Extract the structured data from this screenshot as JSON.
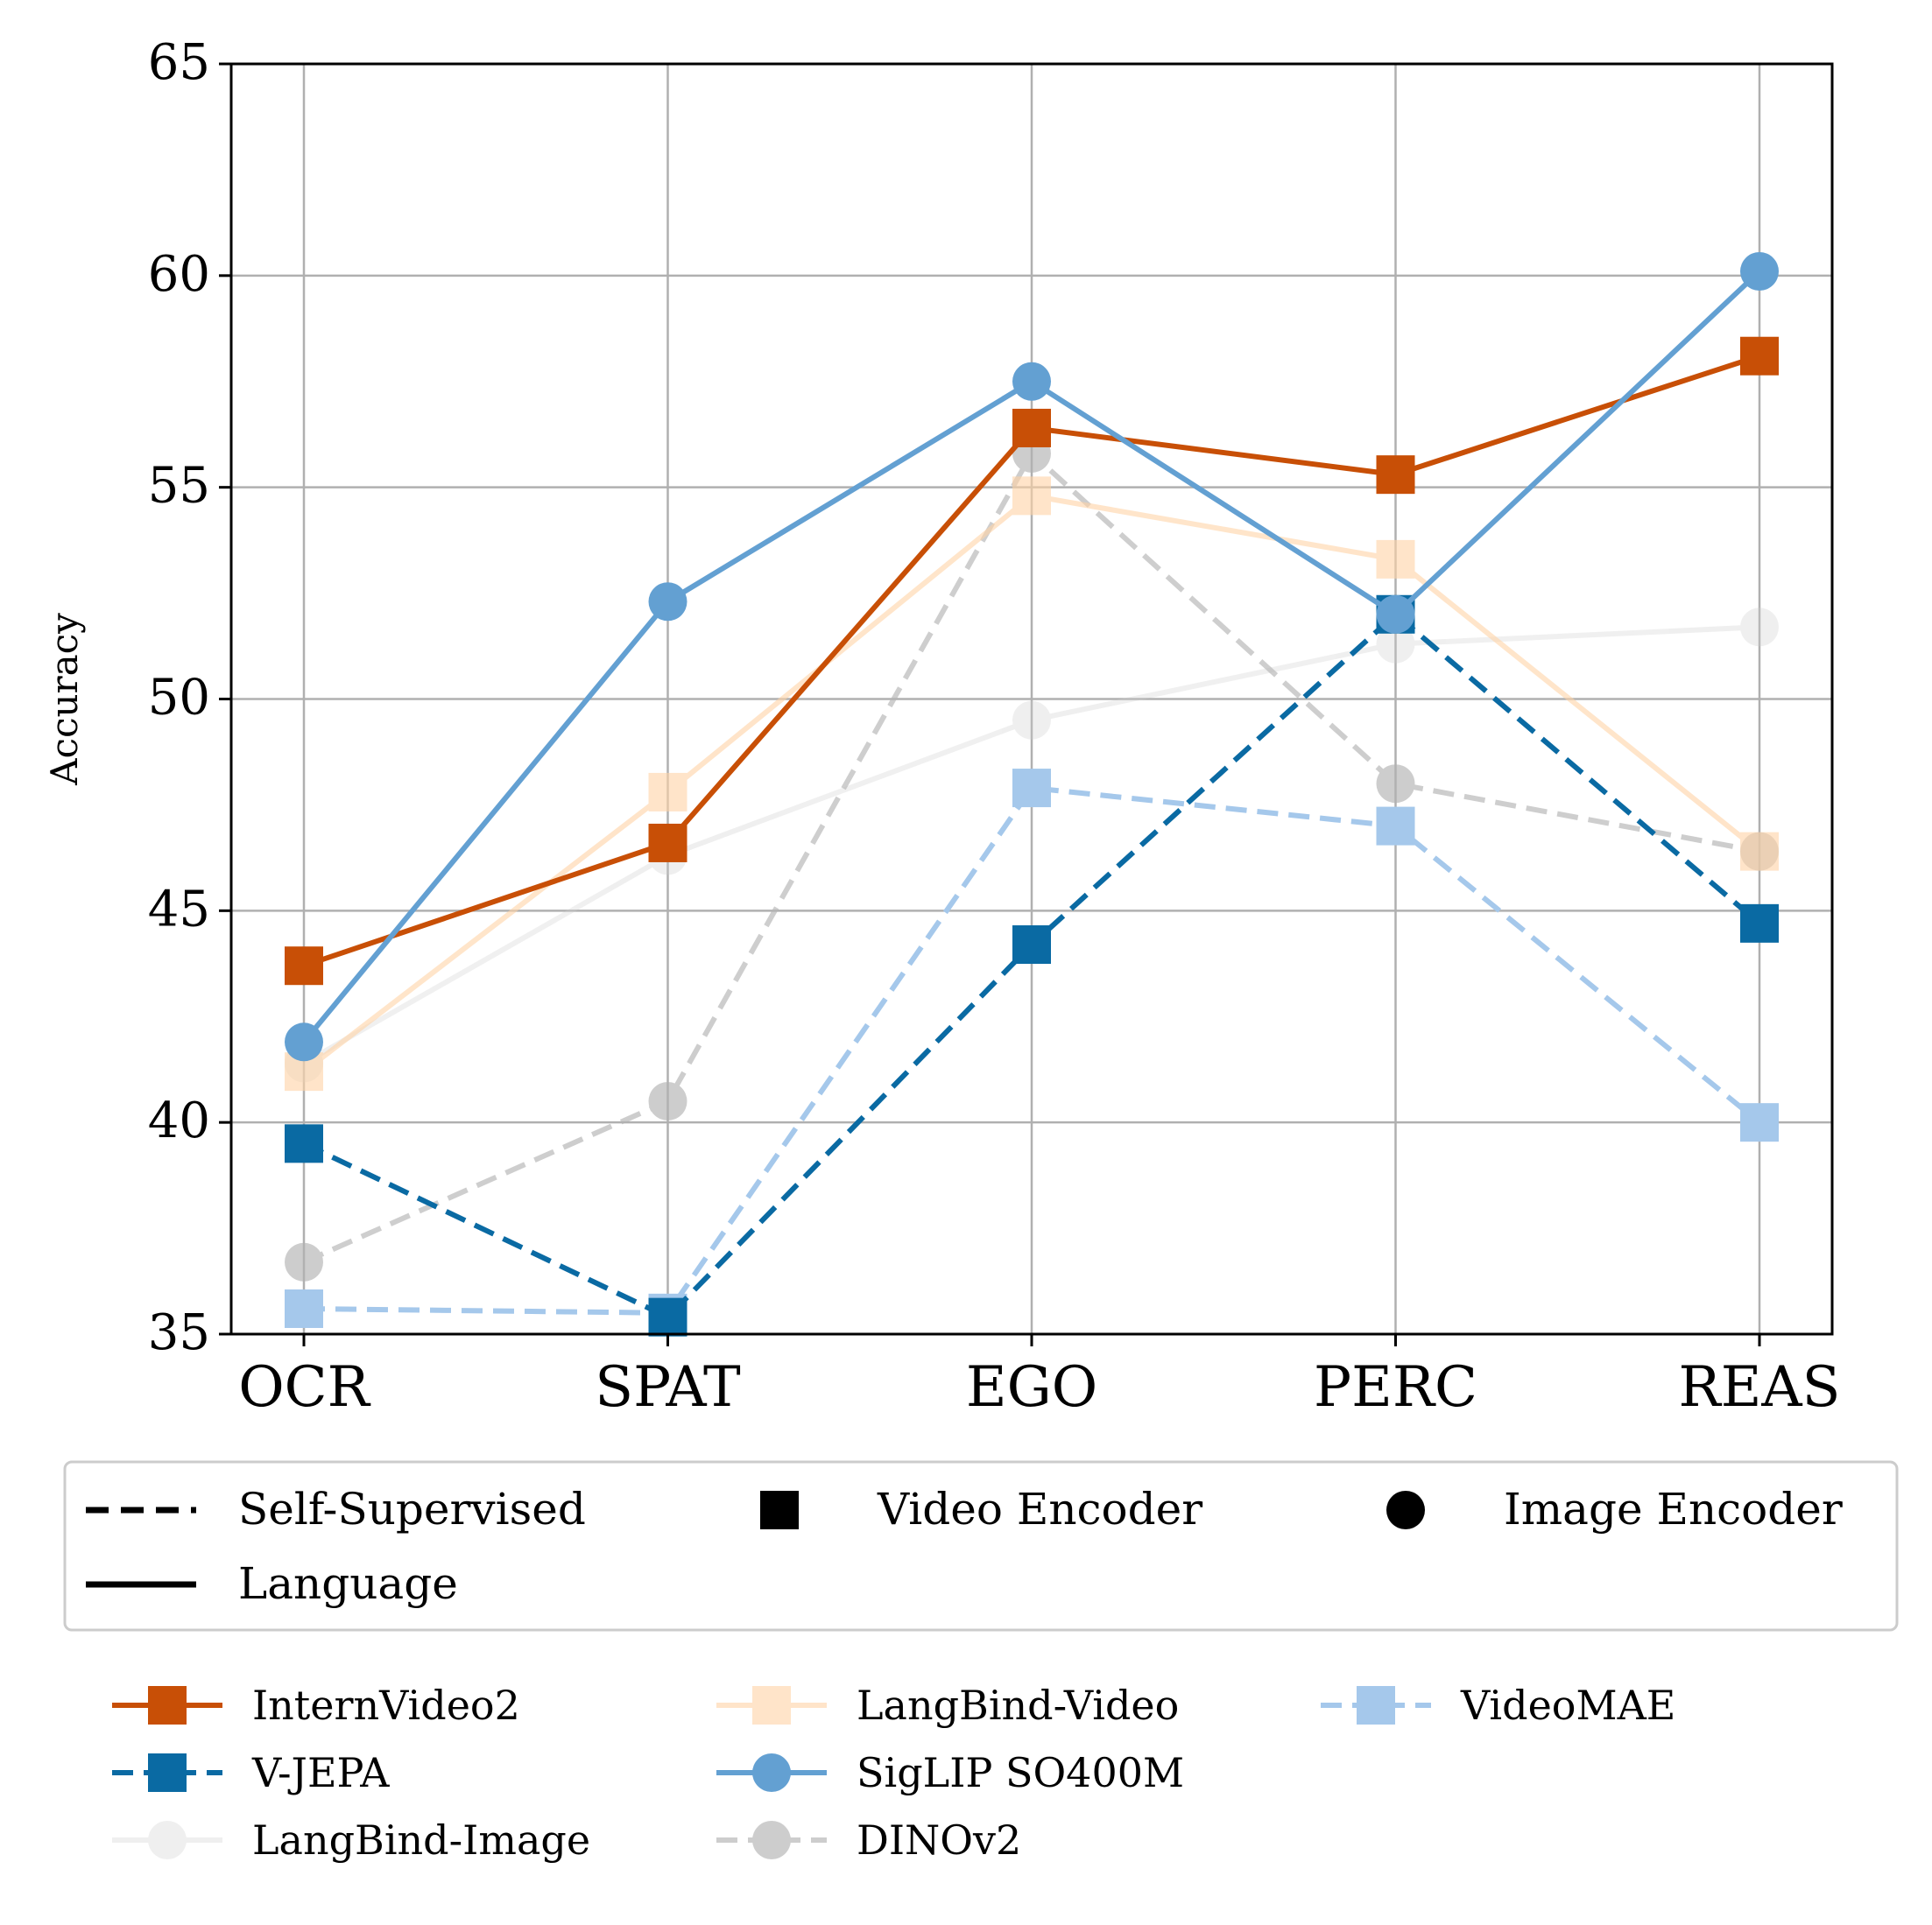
{
  "chart_data": {
    "type": "line",
    "ylabel": "Accuracy",
    "xlabel": "",
    "categories": [
      "OCR",
      "SPAT",
      "EGO",
      "PERC",
      "REAS"
    ],
    "ylim": [
      35,
      65
    ],
    "yticks": [
      35,
      40,
      45,
      50,
      55,
      60,
      65
    ],
    "grid": true,
    "series": [
      {
        "name": "LangBind-Image",
        "marker": "circle",
        "dash": false,
        "color": "#cccccc",
        "opacity": 0.3,
        "values": [
          41.4,
          46.3,
          49.5,
          51.3,
          51.7
        ]
      },
      {
        "name": "DINOv2",
        "marker": "circle",
        "dash": true,
        "color": "#b3b3b3",
        "opacity": 0.65,
        "values": [
          36.7,
          40.5,
          55.8,
          48.0,
          46.4
        ]
      },
      {
        "name": "LangBind-Video",
        "marker": "square",
        "dash": false,
        "color": "#ffd3a6",
        "opacity": 0.6,
        "values": [
          41.2,
          47.8,
          54.8,
          53.3,
          46.4
        ]
      },
      {
        "name": "VideoMAE",
        "marker": "square",
        "dash": true,
        "color": "#a5c8eb",
        "opacity": 1,
        "values": [
          35.6,
          35.5,
          47.9,
          47.0,
          40.0
        ]
      },
      {
        "name": "V-JEPA",
        "marker": "square",
        "dash": true,
        "color": "#0a6aa3",
        "opacity": 1,
        "values": [
          39.5,
          35.4,
          44.2,
          52.0,
          44.7
        ]
      },
      {
        "name": "InternVideo2",
        "marker": "square",
        "dash": false,
        "color": "#c84f06",
        "opacity": 1,
        "values": [
          43.7,
          46.6,
          56.4,
          55.3,
          58.1
        ]
      },
      {
        "name": "SigLIP SO400M",
        "marker": "circle",
        "dash": false,
        "color": "#63a0d2",
        "opacity": 1,
        "values": [
          41.9,
          52.3,
          57.5,
          52.0,
          60.1
        ]
      }
    ],
    "style_legend": [
      {
        "label": "Self-Supervised",
        "kind": "dashed-line"
      },
      {
        "label": "Video Encoder",
        "kind": "square-marker"
      },
      {
        "label": "Image Encoder",
        "kind": "circle-marker"
      },
      {
        "label": "Language",
        "kind": "solid-line"
      }
    ],
    "series_legend": [
      "InternVideo2",
      "V-JEPA",
      "LangBind-Image",
      "LangBind-Video",
      "SigLIP SO400M",
      "DINOv2",
      "VideoMAE"
    ]
  }
}
